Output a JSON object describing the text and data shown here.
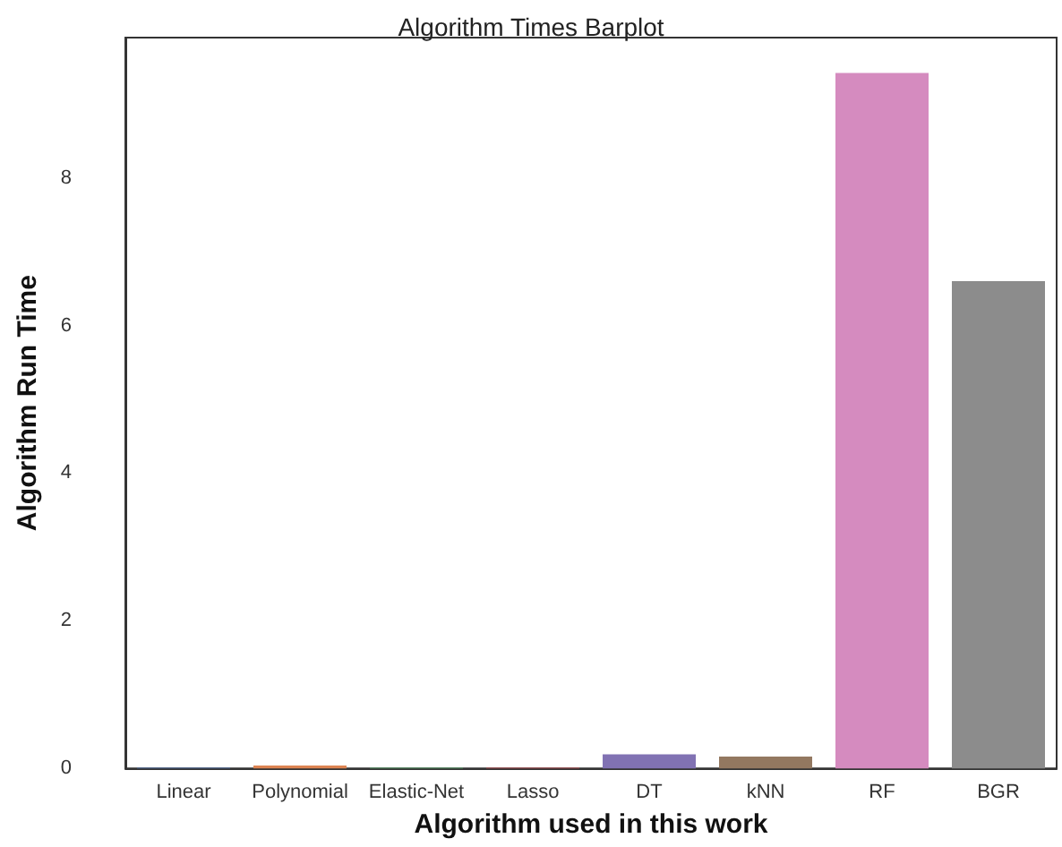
{
  "chart_data": {
    "type": "bar",
    "title": "Algorithm Times Barplot",
    "xlabel": "Algorithm used in this work",
    "ylabel": "Algorithm Run Time",
    "categories": [
      "Linear",
      "Polynomial",
      "Elastic-Net",
      "Lasso",
      "DT",
      "kNN",
      "RF",
      "BGR"
    ],
    "values": [
      0.01,
      0.04,
      0.01,
      0.01,
      0.19,
      0.16,
      9.42,
      6.6
    ],
    "colors": [
      "#4c72b0",
      "#dd8452",
      "#55a868",
      "#c44e52",
      "#8172b3",
      "#937860",
      "#d58bbf",
      "#8c8c8c"
    ],
    "ylim": [
      0,
      9.9
    ],
    "yticks": [
      0,
      2,
      4,
      6,
      8
    ],
    "grid": false
  }
}
